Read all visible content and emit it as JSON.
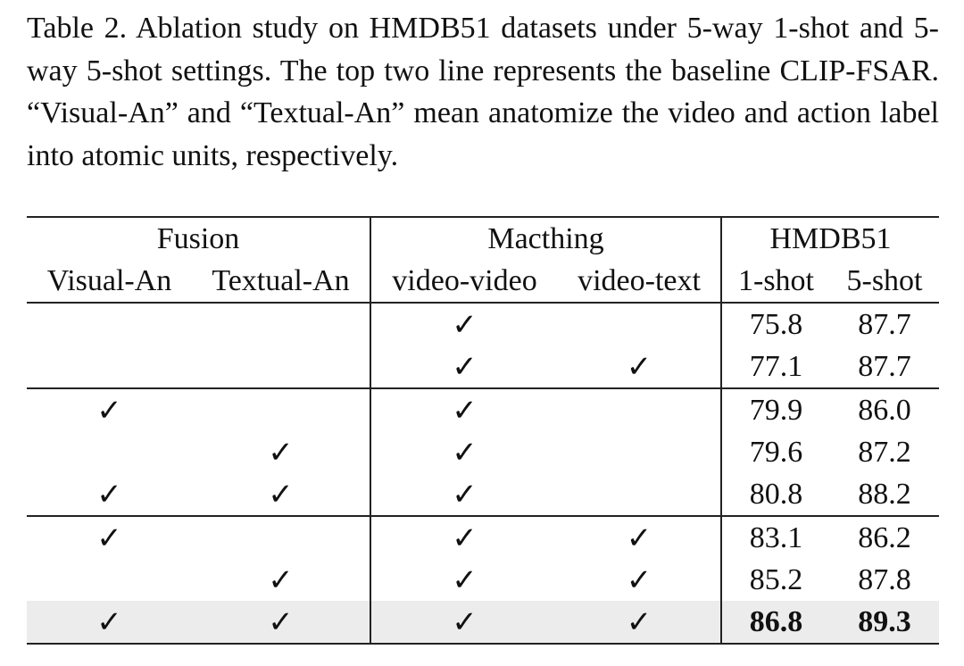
{
  "caption": "Table 2. Ablation study on HMDB51 datasets under 5-way 1-shot and 5-way 5-shot settings. The top two line represents the baseline CLIP-FSAR. “Visual-An” and “Textual-An” mean anatomize the video and action label into atomic units, respectively.",
  "table": {
    "header_groups": [
      "Fusion",
      "Macthing",
      "HMDB51"
    ],
    "columns": [
      "Visual-An",
      "Textual-An",
      "video-video",
      "video-text",
      "1-shot",
      "5-shot"
    ],
    "rows": [
      [
        null,
        null,
        "✓",
        null,
        "75.8",
        "87.7"
      ],
      [
        null,
        null,
        "✓",
        "✓",
        "77.1",
        "87.7"
      ],
      [
        "✓",
        null,
        "✓",
        null,
        "79.9",
        "86.0"
      ],
      [
        null,
        "✓",
        "✓",
        null,
        "79.6",
        "87.2"
      ],
      [
        "✓",
        "✓",
        "✓",
        null,
        "80.8",
        "88.2"
      ],
      [
        "✓",
        null,
        "✓",
        "✓",
        "83.1",
        "86.2"
      ],
      [
        null,
        "✓",
        "✓",
        "✓",
        "85.2",
        "87.8"
      ],
      [
        "✓",
        "✓",
        "✓",
        "✓",
        "86.8",
        "89.3"
      ]
    ]
  }
}
